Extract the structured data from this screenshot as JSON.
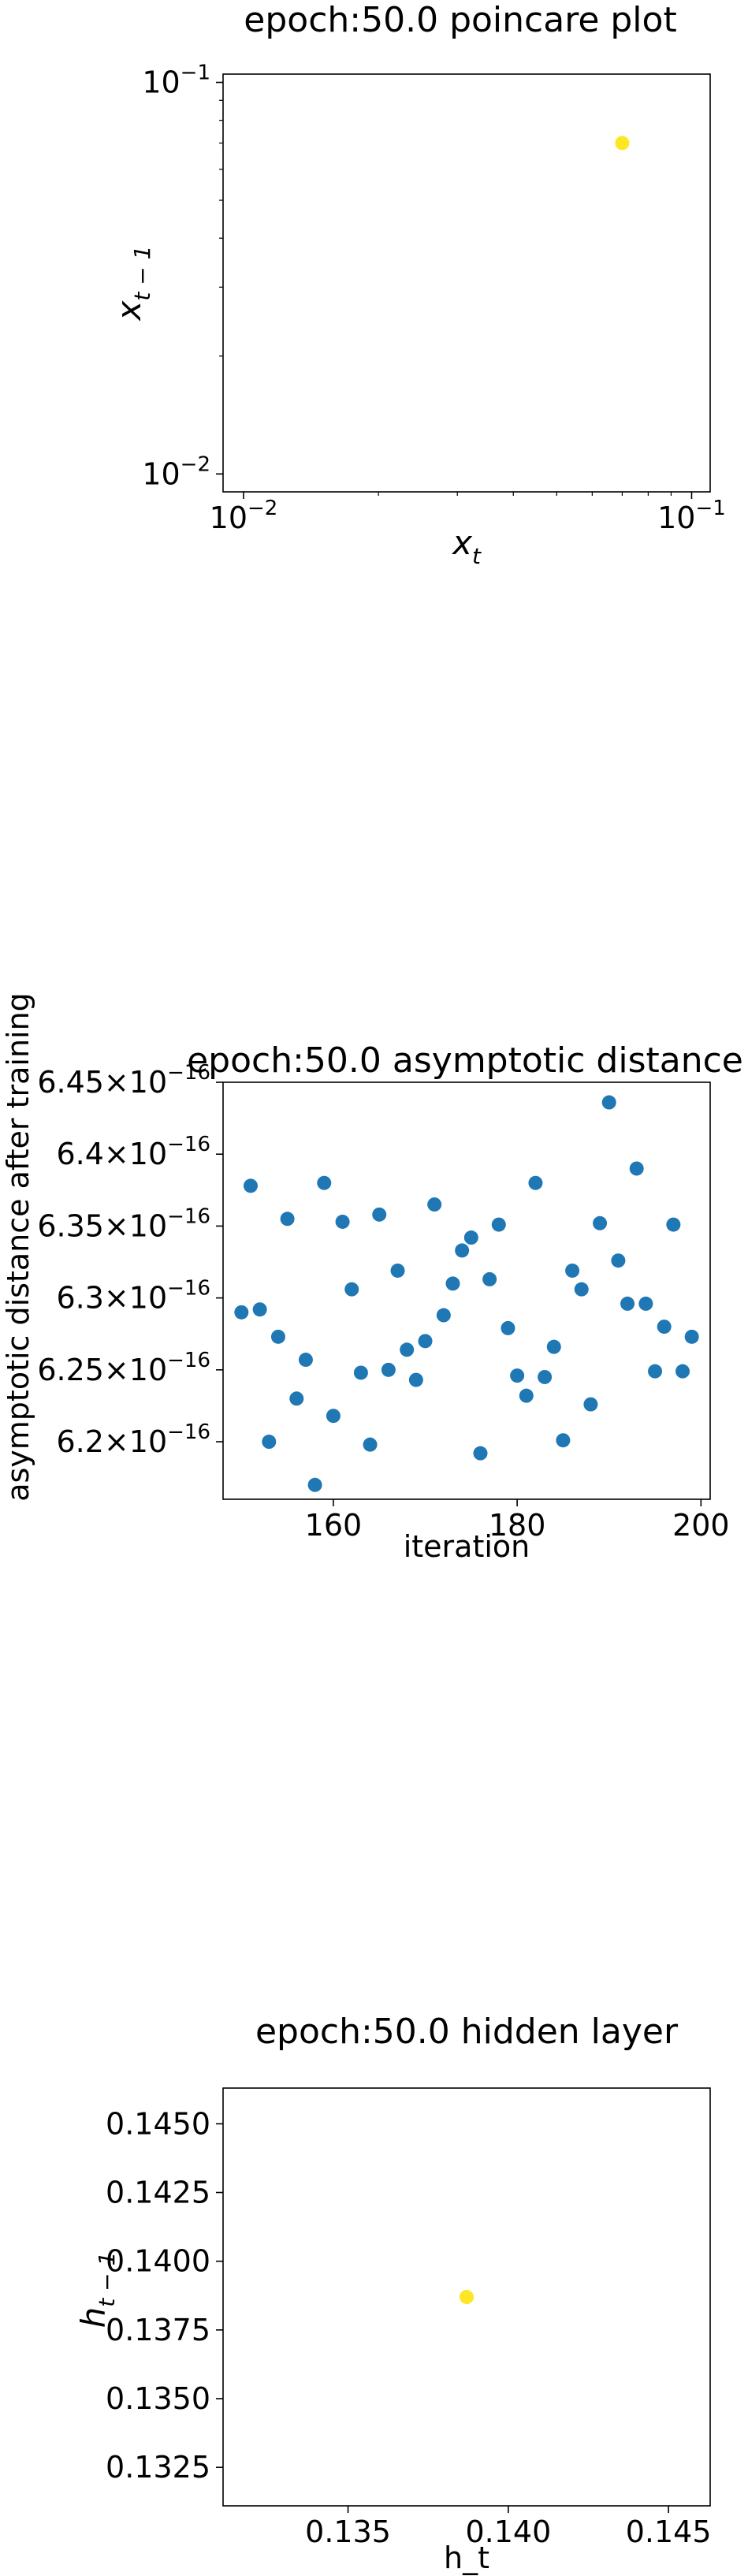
{
  "chart_data": [
    {
      "type": "scatter",
      "title": "epoch:50.0 poincare plot",
      "xlabel": "x_t",
      "ylabel": "x_{t-1}",
      "xscale": "log",
      "yscale": "log",
      "xlim": [
        0.009,
        0.11
      ],
      "ylim": [
        0.009,
        0.105
      ],
      "x_ticks": [
        0.01,
        0.1
      ],
      "y_ticks": [
        0.01,
        0.1
      ],
      "x_tick_labels": [
        {
          "base": "10",
          "exp": "−2"
        },
        {
          "base": "10",
          "exp": "−1"
        }
      ],
      "y_tick_labels": [
        {
          "base": "10",
          "exp": "−2"
        },
        {
          "base": "10",
          "exp": "−1"
        }
      ],
      "grid": false,
      "marker_color": "#fde725",
      "points": [
        {
          "x": 0.07,
          "y": 0.07
        }
      ]
    },
    {
      "type": "scatter",
      "title": "epoch:50.0 asymptotic distance",
      "xlabel": "iteration",
      "ylabel": "asymptotic distance after training",
      "xlim": [
        148,
        201
      ],
      "ylim": [
        6.16e-16,
        6.45e-16
      ],
      "x_ticks": [
        160,
        180,
        200
      ],
      "x_tick_labels": [
        "160",
        "180",
        "200"
      ],
      "y_ticks": [
        6.2e-16,
        6.25e-16,
        6.3e-16,
        6.35e-16,
        6.4e-16,
        6.45e-16
      ],
      "y_tick_labels": [
        {
          "mant": "6.2",
          "base": "10",
          "exp": "−16"
        },
        {
          "mant": "6.25",
          "base": "10",
          "exp": "−16"
        },
        {
          "mant": "6.3",
          "base": "10",
          "exp": "−16"
        },
        {
          "mant": "6.35",
          "base": "10",
          "exp": "−16"
        },
        {
          "mant": "6.4",
          "base": "10",
          "exp": "−16"
        },
        {
          "mant": "6.45",
          "base": "10",
          "exp": "−16"
        }
      ],
      "grid": false,
      "marker_color": "#1f77b4",
      "x": [
        150,
        151,
        152,
        153,
        154,
        155,
        156,
        157,
        158,
        159,
        160,
        161,
        162,
        163,
        164,
        165,
        166,
        167,
        168,
        169,
        170,
        171,
        172,
        173,
        174,
        175,
        176,
        177,
        178,
        179,
        180,
        181,
        182,
        183,
        184,
        185,
        186,
        187,
        188,
        189,
        190,
        191,
        192,
        193,
        194,
        195,
        196,
        197,
        198,
        199
      ],
      "y": [
        6.29e-16,
        6.378e-16,
        6.292e-16,
        6.2e-16,
        6.273e-16,
        6.355e-16,
        6.23e-16,
        6.257e-16,
        6.17e-16,
        6.38e-16,
        6.218e-16,
        6.353e-16,
        6.306e-16,
        6.248e-16,
        6.198e-16,
        6.358e-16,
        6.25e-16,
        6.319e-16,
        6.264e-16,
        6.243e-16,
        6.27e-16,
        6.365e-16,
        6.288e-16,
        6.31e-16,
        6.333e-16,
        6.342e-16,
        6.192e-16,
        6.313e-16,
        6.351e-16,
        6.279e-16,
        6.246e-16,
        6.232e-16,
        6.38e-16,
        6.245e-16,
        6.266e-16,
        6.201e-16,
        6.319e-16,
        6.306e-16,
        6.226e-16,
        6.352e-16,
        6.436e-16,
        6.326e-16,
        6.296e-16,
        6.39e-16,
        6.296e-16,
        6.249e-16,
        6.28e-16,
        6.351e-16,
        6.249e-16,
        6.273e-16
      ]
    },
    {
      "type": "scatter",
      "title": "epoch:50.0 hidden layer",
      "xlabel": "h_t",
      "ylabel": "h_{t-1}",
      "xlim": [
        0.1311,
        0.1463
      ],
      "ylim": [
        0.1311,
        0.1463
      ],
      "x_ticks": [
        0.135,
        0.14,
        0.145
      ],
      "x_tick_labels": [
        "0.135",
        "0.140",
        "0.145"
      ],
      "y_ticks": [
        0.1325,
        0.135,
        0.1375,
        0.14,
        0.1425,
        0.145
      ],
      "y_tick_labels": [
        "0.1325",
        "0.1350",
        "0.1375",
        "0.1400",
        "0.1425",
        "0.1450"
      ],
      "grid": false,
      "marker_color": "#fde725",
      "points": [
        {
          "x": 0.1387,
          "y": 0.1387
        }
      ]
    }
  ]
}
